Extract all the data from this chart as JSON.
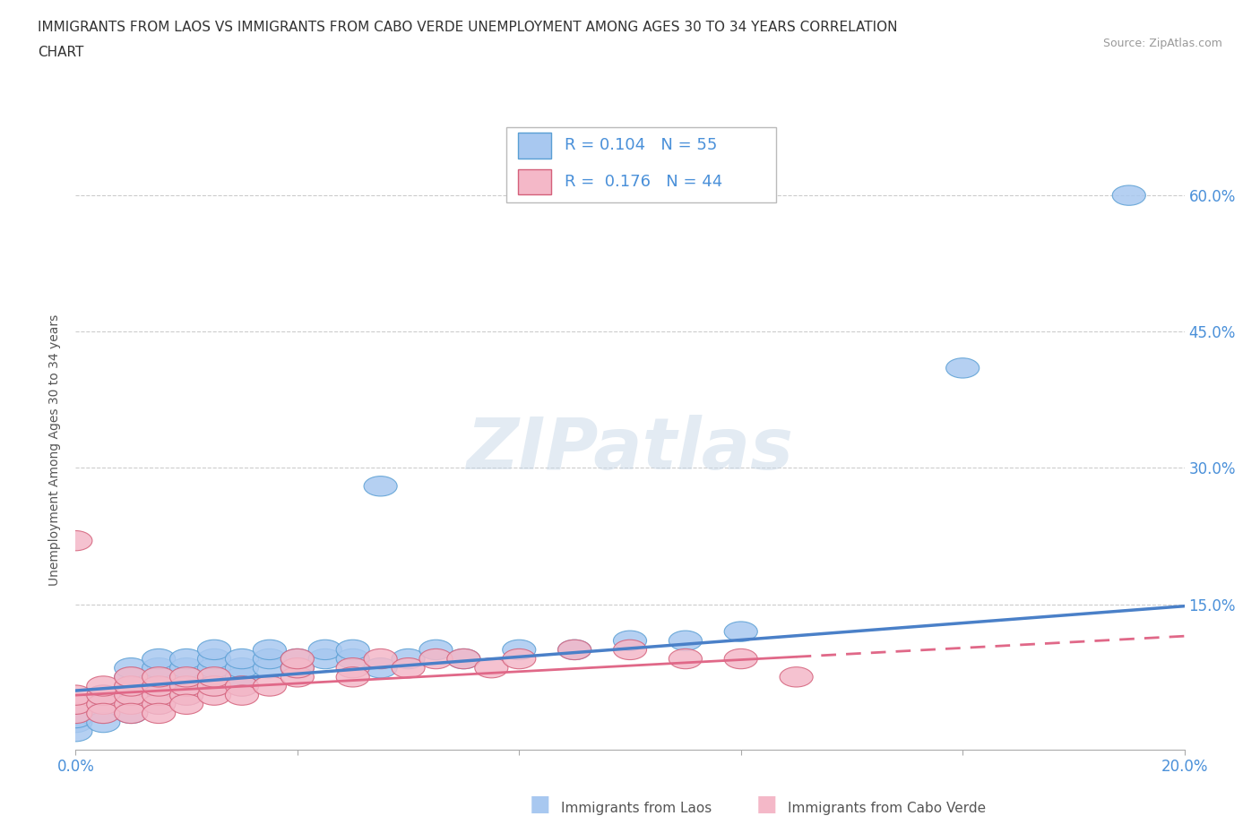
{
  "title_line1": "IMMIGRANTS FROM LAOS VS IMMIGRANTS FROM CABO VERDE UNEMPLOYMENT AMONG AGES 30 TO 34 YEARS CORRELATION",
  "title_line2": "CHART",
  "source": "Source: ZipAtlas.com",
  "ylabel": "Unemployment Among Ages 30 to 34 years",
  "xlim": [
    0.0,
    0.2
  ],
  "ylim": [
    -0.01,
    0.65
  ],
  "xticks": [
    0.0,
    0.04,
    0.08,
    0.12,
    0.16,
    0.2
  ],
  "yticks": [
    0.0,
    0.15,
    0.3,
    0.45,
    0.6
  ],
  "R_laos": 0.104,
  "N_laos": 55,
  "R_cabo": 0.176,
  "N_cabo": 44,
  "laos_fill": "#a8c8f0",
  "laos_edge": "#5a9fd4",
  "cabo_fill": "#f4b8c8",
  "cabo_edge": "#d4607a",
  "laos_line_color": "#4a80c8",
  "cabo_line_color": "#e06888",
  "laos_scatter": [
    [
      0.0,
      0.02
    ],
    [
      0.0,
      0.03
    ],
    [
      0.0,
      0.01
    ],
    [
      0.0,
      0.025
    ],
    [
      0.005,
      0.04
    ],
    [
      0.005,
      0.03
    ],
    [
      0.005,
      0.05
    ],
    [
      0.005,
      0.02
    ],
    [
      0.01,
      0.04
    ],
    [
      0.01,
      0.05
    ],
    [
      0.01,
      0.06
    ],
    [
      0.01,
      0.03
    ],
    [
      0.01,
      0.07
    ],
    [
      0.01,
      0.08
    ],
    [
      0.015,
      0.05
    ],
    [
      0.015,
      0.06
    ],
    [
      0.015,
      0.07
    ],
    [
      0.015,
      0.04
    ],
    [
      0.015,
      0.08
    ],
    [
      0.015,
      0.09
    ],
    [
      0.02,
      0.06
    ],
    [
      0.02,
      0.07
    ],
    [
      0.02,
      0.05
    ],
    [
      0.02,
      0.08
    ],
    [
      0.02,
      0.09
    ],
    [
      0.025,
      0.07
    ],
    [
      0.025,
      0.08
    ],
    [
      0.025,
      0.09
    ],
    [
      0.025,
      0.1
    ],
    [
      0.025,
      0.06
    ],
    [
      0.03,
      0.07
    ],
    [
      0.03,
      0.08
    ],
    [
      0.03,
      0.06
    ],
    [
      0.03,
      0.09
    ],
    [
      0.035,
      0.08
    ],
    [
      0.035,
      0.09
    ],
    [
      0.035,
      0.1
    ],
    [
      0.04,
      0.08
    ],
    [
      0.04,
      0.09
    ],
    [
      0.045,
      0.09
    ],
    [
      0.045,
      0.1
    ],
    [
      0.05,
      0.09
    ],
    [
      0.05,
      0.1
    ],
    [
      0.055,
      0.08
    ],
    [
      0.06,
      0.09
    ],
    [
      0.065,
      0.1
    ],
    [
      0.07,
      0.09
    ],
    [
      0.08,
      0.1
    ],
    [
      0.09,
      0.1
    ],
    [
      0.1,
      0.11
    ],
    [
      0.11,
      0.11
    ],
    [
      0.12,
      0.12
    ],
    [
      0.055,
      0.28
    ],
    [
      0.16,
      0.41
    ],
    [
      0.19,
      0.6
    ]
  ],
  "cabo_scatter": [
    [
      0.0,
      0.22
    ],
    [
      0.0,
      0.03
    ],
    [
      0.0,
      0.04
    ],
    [
      0.0,
      0.05
    ],
    [
      0.005,
      0.04
    ],
    [
      0.005,
      0.05
    ],
    [
      0.005,
      0.03
    ],
    [
      0.005,
      0.06
    ],
    [
      0.01,
      0.04
    ],
    [
      0.01,
      0.05
    ],
    [
      0.01,
      0.06
    ],
    [
      0.01,
      0.03
    ],
    [
      0.01,
      0.07
    ],
    [
      0.015,
      0.04
    ],
    [
      0.015,
      0.05
    ],
    [
      0.015,
      0.06
    ],
    [
      0.015,
      0.07
    ],
    [
      0.015,
      0.03
    ],
    [
      0.02,
      0.05
    ],
    [
      0.02,
      0.06
    ],
    [
      0.02,
      0.04
    ],
    [
      0.02,
      0.07
    ],
    [
      0.025,
      0.05
    ],
    [
      0.025,
      0.06
    ],
    [
      0.025,
      0.07
    ],
    [
      0.03,
      0.06
    ],
    [
      0.03,
      0.05
    ],
    [
      0.035,
      0.06
    ],
    [
      0.04,
      0.07
    ],
    [
      0.04,
      0.08
    ],
    [
      0.04,
      0.09
    ],
    [
      0.05,
      0.08
    ],
    [
      0.05,
      0.07
    ],
    [
      0.055,
      0.09
    ],
    [
      0.06,
      0.08
    ],
    [
      0.065,
      0.09
    ],
    [
      0.07,
      0.09
    ],
    [
      0.075,
      0.08
    ],
    [
      0.08,
      0.09
    ],
    [
      0.09,
      0.1
    ],
    [
      0.1,
      0.1
    ],
    [
      0.11,
      0.09
    ],
    [
      0.12,
      0.09
    ],
    [
      0.13,
      0.07
    ]
  ],
  "watermark": "ZIPatlas",
  "watermark_color": "#c8d8e8",
  "background_color": "#ffffff",
  "grid_color": "#cccccc"
}
